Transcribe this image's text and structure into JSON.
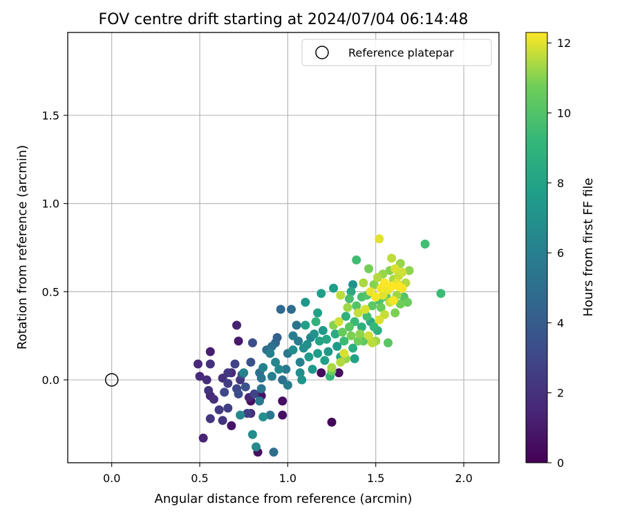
{
  "chart_data": {
    "type": "scatter",
    "title": "FOV centre drift starting at 2024/07/04 06:14:48",
    "xlabel": "Angular distance from reference (arcmin)",
    "ylabel": "Rotation from reference (arcmin)",
    "xlim": [
      -0.25,
      2.2
    ],
    "ylim": [
      -0.47,
      1.97
    ],
    "xticks": [
      0.0,
      0.5,
      1.0,
      1.5,
      2.0
    ],
    "xtick_labels": [
      "0.0",
      "0.5",
      "1.0",
      "1.5",
      "2.0"
    ],
    "yticks": [
      0.0,
      0.5,
      1.0,
      1.5
    ],
    "ytick_labels": [
      "0.0",
      "0.5",
      "1.0",
      "1.5"
    ],
    "grid": true,
    "legend": {
      "placement": "upper right",
      "entries": [
        "Reference platepar"
      ]
    },
    "reference_point": {
      "x": 0.0,
      "y": 0.0
    },
    "colorbar": {
      "label": "Hours from first FF file",
      "range": [
        0,
        12.3
      ],
      "ticks": [
        0,
        2,
        4,
        6,
        8,
        10,
        12
      ],
      "tick_labels": [
        "0",
        "2",
        "4",
        "6",
        "8",
        "10",
        "12"
      ],
      "colormap": "viridis"
    },
    "points": [
      {
        "x": 1.25,
        "y": -0.24,
        "h": 0.3
      },
      {
        "x": 0.83,
        "y": -0.41,
        "h": 0.6
      },
      {
        "x": 0.79,
        "y": -0.12,
        "h": 0.5
      },
      {
        "x": 0.85,
        "y": -0.09,
        "h": 0.7
      },
      {
        "x": 0.97,
        "y": -0.12,
        "h": 0.5
      },
      {
        "x": 0.97,
        "y": -0.2,
        "h": 0.6
      },
      {
        "x": 1.19,
        "y": 0.04,
        "h": 0.4
      },
      {
        "x": 1.29,
        "y": 0.04,
        "h": 0.5
      },
      {
        "x": 0.68,
        "y": -0.26,
        "h": 0.8
      },
      {
        "x": 0.72,
        "y": 0.22,
        "h": 1.0
      },
      {
        "x": 0.71,
        "y": 0.31,
        "h": 1.3
      },
      {
        "x": 0.56,
        "y": 0.16,
        "h": 1.1
      },
      {
        "x": 0.52,
        "y": -0.33,
        "h": 1.4
      },
      {
        "x": 0.49,
        "y": 0.09,
        "h": 1.6
      },
      {
        "x": 0.5,
        "y": 0.02,
        "h": 1.7
      },
      {
        "x": 0.54,
        "y": 0.0,
        "h": 1.8
      },
      {
        "x": 0.55,
        "y": -0.06,
        "h": 2.0
      },
      {
        "x": 0.56,
        "y": -0.09,
        "h": 1.5
      },
      {
        "x": 0.58,
        "y": -0.11,
        "h": 1.9
      },
      {
        "x": 0.56,
        "y": -0.22,
        "h": 2.2
      },
      {
        "x": 0.61,
        "y": -0.17,
        "h": 2.4
      },
      {
        "x": 0.63,
        "y": -0.23,
        "h": 2.1
      },
      {
        "x": 0.66,
        "y": -0.16,
        "h": 2.6
      },
      {
        "x": 0.7,
        "y": 0.09,
        "h": 2.8
      },
      {
        "x": 0.56,
        "y": 0.09,
        "h": 2.0
      },
      {
        "x": 0.63,
        "y": 0.01,
        "h": 1.9
      },
      {
        "x": 0.66,
        "y": 0.04,
        "h": 2.3
      },
      {
        "x": 0.68,
        "y": 0.04,
        "h": 1.7
      },
      {
        "x": 0.66,
        "y": -0.02,
        "h": 2.5
      },
      {
        "x": 0.64,
        "y": -0.07,
        "h": 3.0
      },
      {
        "x": 0.71,
        "y": -0.05,
        "h": 2.9
      },
      {
        "x": 0.72,
        "y": -0.08,
        "h": 3.2
      },
      {
        "x": 0.74,
        "y": 0.03,
        "h": 3.4
      },
      {
        "x": 0.73,
        "y": 0.0,
        "h": 2.2
      },
      {
        "x": 0.76,
        "y": -0.04,
        "h": 3.6
      },
      {
        "x": 0.77,
        "y": -0.19,
        "h": 2.7
      },
      {
        "x": 0.79,
        "y": -0.19,
        "h": 1.8
      },
      {
        "x": 0.78,
        "y": -0.1,
        "h": 1.5
      },
      {
        "x": 0.81,
        "y": -0.08,
        "h": 2.8
      },
      {
        "x": 0.79,
        "y": 0.1,
        "h": 3.5
      },
      {
        "x": 0.8,
        "y": 0.21,
        "h": 3.3
      },
      {
        "x": 0.75,
        "y": 0.04,
        "h": 6.2
      },
      {
        "x": 0.73,
        "y": -0.2,
        "h": 6.5
      },
      {
        "x": 0.8,
        "y": -0.31,
        "h": 6.8
      },
      {
        "x": 0.82,
        "y": -0.38,
        "h": 6.6
      },
      {
        "x": 0.92,
        "y": -0.41,
        "h": 5.0
      },
      {
        "x": 0.86,
        "y": -0.21,
        "h": 6.9
      },
      {
        "x": 0.9,
        "y": -0.2,
        "h": 5.5
      },
      {
        "x": 0.84,
        "y": -0.12,
        "h": 5.6
      },
      {
        "x": 0.85,
        "y": -0.05,
        "h": 5.2
      },
      {
        "x": 0.84,
        "y": 0.04,
        "h": 5.0
      },
      {
        "x": 0.85,
        "y": 0.01,
        "h": 5.4
      },
      {
        "x": 0.86,
        "y": 0.07,
        "h": 6.1
      },
      {
        "x": 0.88,
        "y": 0.17,
        "h": 5.0
      },
      {
        "x": 0.9,
        "y": 0.15,
        "h": 6.0
      },
      {
        "x": 0.91,
        "y": 0.19,
        "h": 5.1
      },
      {
        "x": 0.93,
        "y": 0.21,
        "h": 4.5
      },
      {
        "x": 0.94,
        "y": 0.24,
        "h": 4.2
      },
      {
        "x": 0.93,
        "y": 0.1,
        "h": 6.3
      },
      {
        "x": 0.91,
        "y": 0.02,
        "h": 6.0
      },
      {
        "x": 0.95,
        "y": 0.06,
        "h": 6.4
      },
      {
        "x": 0.97,
        "y": 0.0,
        "h": 5.0
      },
      {
        "x": 0.99,
        "y": 0.06,
        "h": 5.6
      },
      {
        "x": 1.0,
        "y": -0.03,
        "h": 5.8
      },
      {
        "x": 0.96,
        "y": 0.4,
        "h": 4.6
      },
      {
        "x": 1.02,
        "y": 0.4,
        "h": 4.9
      },
      {
        "x": 1.0,
        "y": 0.15,
        "h": 5.5
      },
      {
        "x": 1.03,
        "y": 0.17,
        "h": 6.7
      },
      {
        "x": 1.03,
        "y": 0.25,
        "h": 5.9
      },
      {
        "x": 1.05,
        "y": 0.31,
        "h": 5.3
      },
      {
        "x": 1.06,
        "y": 0.22,
        "h": 5.8
      },
      {
        "x": 1.07,
        "y": 0.1,
        "h": 6.2
      },
      {
        "x": 1.07,
        "y": 0.04,
        "h": 6.8
      },
      {
        "x": 1.08,
        "y": 0.0,
        "h": 7.2
      },
      {
        "x": 1.09,
        "y": 0.18,
        "h": 7.0
      },
      {
        "x": 1.1,
        "y": 0.44,
        "h": 7.3
      },
      {
        "x": 1.1,
        "y": 0.31,
        "h": 7.8
      },
      {
        "x": 1.11,
        "y": 0.2,
        "h": 6.9
      },
      {
        "x": 1.12,
        "y": 0.13,
        "h": 7.5
      },
      {
        "x": 1.13,
        "y": 0.24,
        "h": 6.3
      },
      {
        "x": 1.14,
        "y": 0.06,
        "h": 7.4
      },
      {
        "x": 1.15,
        "y": 0.26,
        "h": 7.1
      },
      {
        "x": 1.16,
        "y": 0.33,
        "h": 8.9
      },
      {
        "x": 1.17,
        "y": 0.38,
        "h": 7.9
      },
      {
        "x": 1.17,
        "y": 0.15,
        "h": 7.6
      },
      {
        "x": 1.18,
        "y": 0.22,
        "h": 8.0
      },
      {
        "x": 1.19,
        "y": 0.49,
        "h": 7.7
      },
      {
        "x": 1.2,
        "y": 0.28,
        "h": 7.4
      },
      {
        "x": 1.21,
        "y": 0.11,
        "h": 7.8
      },
      {
        "x": 1.22,
        "y": 0.23,
        "h": 8.2
      },
      {
        "x": 1.23,
        "y": 0.16,
        "h": 7.3
      },
      {
        "x": 1.24,
        "y": 0.02,
        "h": 9.1
      },
      {
        "x": 1.25,
        "y": 0.05,
        "h": 10.6
      },
      {
        "x": 1.25,
        "y": 0.07,
        "h": 11.4
      },
      {
        "x": 1.26,
        "y": 0.31,
        "h": 11.0
      },
      {
        "x": 1.26,
        "y": 0.52,
        "h": 7.7
      },
      {
        "x": 1.27,
        "y": 0.26,
        "h": 8.5
      },
      {
        "x": 1.28,
        "y": 0.19,
        "h": 7.6
      },
      {
        "x": 1.29,
        "y": 0.33,
        "h": 11.8
      },
      {
        "x": 1.3,
        "y": 0.13,
        "h": 8.1
      },
      {
        "x": 1.3,
        "y": 0.48,
        "h": 11.6
      },
      {
        "x": 1.3,
        "y": 0.1,
        "h": 11.5
      },
      {
        "x": 1.31,
        "y": 0.27,
        "h": 10.5
      },
      {
        "x": 1.32,
        "y": 0.22,
        "h": 9.4
      },
      {
        "x": 1.32,
        "y": 0.15,
        "h": 11.9
      },
      {
        "x": 1.33,
        "y": 0.12,
        "h": 11.2
      },
      {
        "x": 1.33,
        "y": 0.36,
        "h": 8.8
      },
      {
        "x": 1.34,
        "y": 0.41,
        "h": 11.3
      },
      {
        "x": 1.35,
        "y": 0.3,
        "h": 10.2
      },
      {
        "x": 1.35,
        "y": 0.46,
        "h": 9.7
      },
      {
        "x": 1.36,
        "y": 0.5,
        "h": 8.3
      },
      {
        "x": 1.36,
        "y": 0.25,
        "h": 10.9
      },
      {
        "x": 1.37,
        "y": 0.18,
        "h": 8.6
      },
      {
        "x": 1.37,
        "y": 0.54,
        "h": 7.0
      },
      {
        "x": 1.38,
        "y": 0.12,
        "h": 7.9
      },
      {
        "x": 1.38,
        "y": 0.33,
        "h": 9.3
      },
      {
        "x": 1.39,
        "y": 0.42,
        "h": 10.1
      },
      {
        "x": 1.39,
        "y": 0.68,
        "h": 9.5
      },
      {
        "x": 1.4,
        "y": 0.22,
        "h": 10.7
      },
      {
        "x": 1.4,
        "y": 0.38,
        "h": 11.7
      },
      {
        "x": 1.41,
        "y": 0.26,
        "h": 11.1
      },
      {
        "x": 1.42,
        "y": 0.47,
        "h": 9.8
      },
      {
        "x": 1.42,
        "y": 0.3,
        "h": 8.7
      },
      {
        "x": 1.43,
        "y": 0.22,
        "h": 10.4
      },
      {
        "x": 1.43,
        "y": 0.55,
        "h": 11.4
      },
      {
        "x": 1.44,
        "y": 0.4,
        "h": 11.9
      },
      {
        "x": 1.45,
        "y": 0.36,
        "h": 9.6
      },
      {
        "x": 1.45,
        "y": 0.48,
        "h": 10.0
      },
      {
        "x": 1.46,
        "y": 0.25,
        "h": 11.8
      },
      {
        "x": 1.46,
        "y": 0.63,
        "h": 10.8
      },
      {
        "x": 1.47,
        "y": 0.33,
        "h": 8.4
      },
      {
        "x": 1.47,
        "y": 0.5,
        "h": 12.1
      },
      {
        "x": 1.48,
        "y": 0.21,
        "h": 11.6
      },
      {
        "x": 1.48,
        "y": 0.42,
        "h": 10.3
      },
      {
        "x": 1.49,
        "y": 0.54,
        "h": 11.0
      },
      {
        "x": 1.49,
        "y": 0.3,
        "h": 9.2
      },
      {
        "x": 1.5,
        "y": 0.22,
        "h": 11.3
      },
      {
        "x": 1.5,
        "y": 0.47,
        "h": 12.2
      },
      {
        "x": 1.51,
        "y": 0.28,
        "h": 8.7
      },
      {
        "x": 1.51,
        "y": 0.58,
        "h": 11.5
      },
      {
        "x": 1.52,
        "y": 0.8,
        "h": 12.0
      },
      {
        "x": 1.52,
        "y": 0.34,
        "h": 11.9
      },
      {
        "x": 1.52,
        "y": 0.45,
        "h": 9.9
      },
      {
        "x": 1.53,
        "y": 0.52,
        "h": 12.2
      },
      {
        "x": 1.53,
        "y": 0.41,
        "h": 10.6
      },
      {
        "x": 1.54,
        "y": 0.6,
        "h": 11.2
      },
      {
        "x": 1.54,
        "y": 0.48,
        "h": 12.0
      },
      {
        "x": 1.55,
        "y": 0.37,
        "h": 11.7
      },
      {
        "x": 1.55,
        "y": 0.55,
        "h": 12.3
      },
      {
        "x": 1.56,
        "y": 0.47,
        "h": 10.4
      },
      {
        "x": 1.57,
        "y": 0.21,
        "h": 10.2
      },
      {
        "x": 1.57,
        "y": 0.51,
        "h": 12.1
      },
      {
        "x": 1.58,
        "y": 0.44,
        "h": 11.8
      },
      {
        "x": 1.58,
        "y": 0.62,
        "h": 11.0
      },
      {
        "x": 1.59,
        "y": 0.69,
        "h": 11.6
      },
      {
        "x": 1.59,
        "y": 0.53,
        "h": 12.3
      },
      {
        "x": 1.6,
        "y": 0.57,
        "h": 11.4
      },
      {
        "x": 1.6,
        "y": 0.45,
        "h": 12.2
      },
      {
        "x": 1.61,
        "y": 0.38,
        "h": 10.9
      },
      {
        "x": 1.61,
        "y": 0.63,
        "h": 11.9
      },
      {
        "x": 1.62,
        "y": 0.55,
        "h": 12.0
      },
      {
        "x": 1.62,
        "y": 0.48,
        "h": 11.3
      },
      {
        "x": 1.63,
        "y": 0.59,
        "h": 11.7
      },
      {
        "x": 1.63,
        "y": 0.53,
        "h": 12.3
      },
      {
        "x": 1.64,
        "y": 0.66,
        "h": 11.2
      },
      {
        "x": 1.64,
        "y": 0.43,
        "h": 10.7
      },
      {
        "x": 1.65,
        "y": 0.52,
        "h": 12.2
      },
      {
        "x": 1.65,
        "y": 0.61,
        "h": 11.8
      },
      {
        "x": 1.66,
        "y": 0.47,
        "h": 10.1
      },
      {
        "x": 1.67,
        "y": 0.55,
        "h": 11.5
      },
      {
        "x": 1.68,
        "y": 0.44,
        "h": 10.6
      },
      {
        "x": 1.69,
        "y": 0.62,
        "h": 11.1
      },
      {
        "x": 1.78,
        "y": 0.77,
        "h": 9.6
      },
      {
        "x": 1.87,
        "y": 0.49,
        "h": 9.4
      }
    ]
  }
}
